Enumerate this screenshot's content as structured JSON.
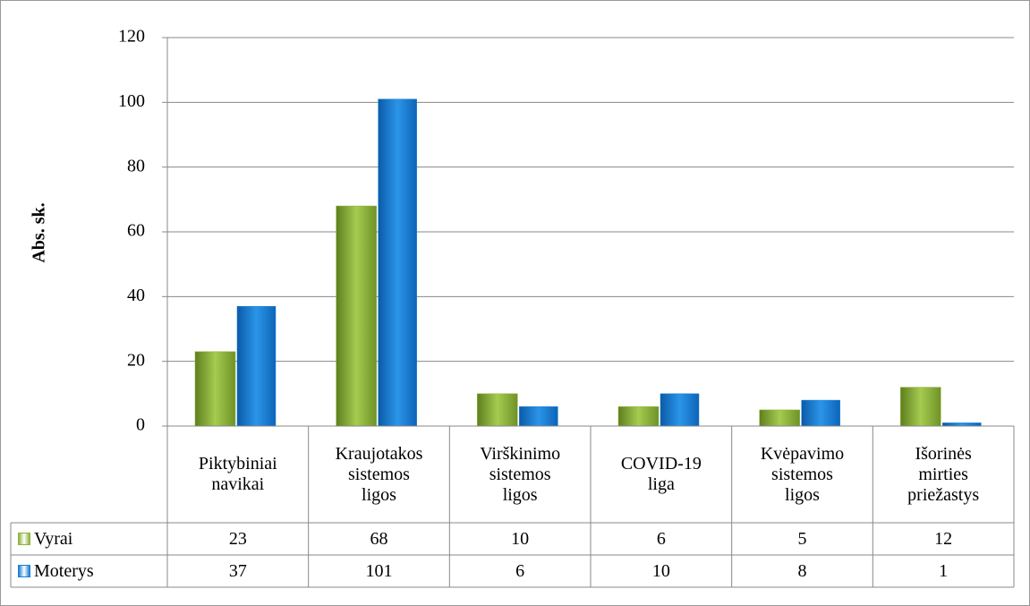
{
  "chart_data": {
    "type": "bar",
    "y_label": "Abs. sk.",
    "categories": [
      "Piktybiniai\nnavikai",
      "Kraujotakos\nsistemos\nligos",
      "Virškinimo\nsistemos\nligos",
      "COVID-19\nliga",
      "Kvėpavimo\nsistemos\nligos",
      "Išorinės\nmirties\npriežastys"
    ],
    "series": [
      {
        "name": "Vyrai",
        "color": "#8db33a",
        "values": [
          23,
          68,
          10,
          6,
          5,
          12
        ]
      },
      {
        "name": "Moterys",
        "color": "#1a7fd4",
        "values": [
          37,
          101,
          6,
          10,
          8,
          1
        ]
      }
    ],
    "ylim": [
      0,
      120
    ],
    "yticks": [
      0,
      20,
      40,
      60,
      80,
      100,
      120
    ],
    "grid": true,
    "data_table": true
  }
}
